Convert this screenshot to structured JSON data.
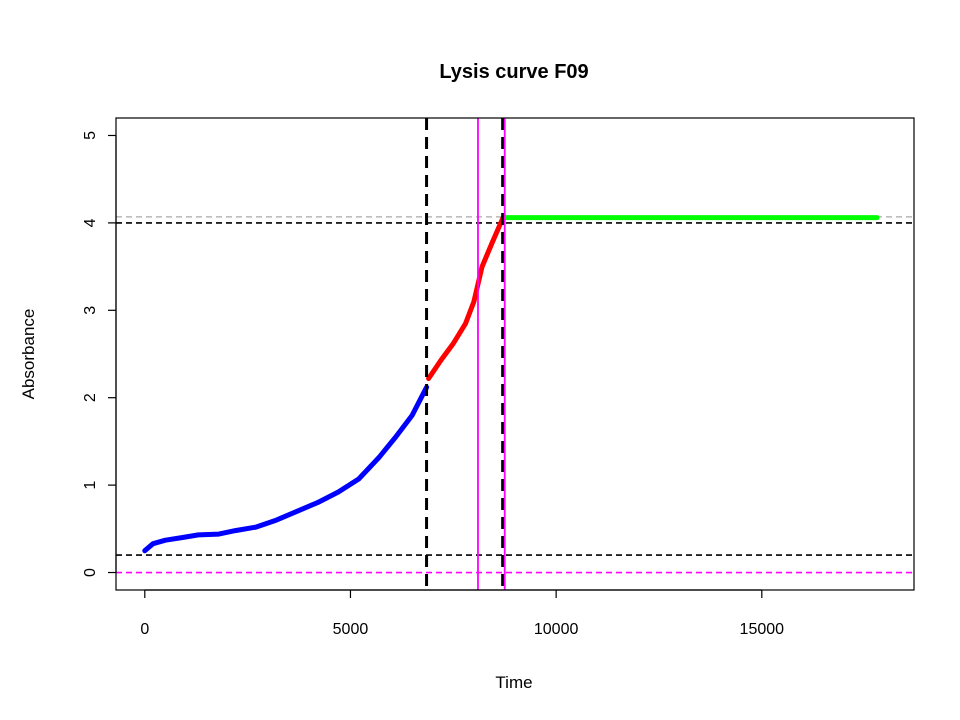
{
  "chart_data": {
    "type": "line",
    "title": "Lysis curve F09",
    "xlabel": "Time",
    "ylabel": "Absorbance",
    "xlim": [
      -700,
      18700
    ],
    "ylim": [
      -0.2,
      5.2
    ],
    "x_ticks": [
      0,
      5000,
      10000,
      15000
    ],
    "x_tick_labels": [
      "0",
      "5000",
      "10000",
      "15000"
    ],
    "y_ticks": [
      0,
      1,
      2,
      3,
      4,
      5
    ],
    "y_tick_labels": [
      "0",
      "1",
      "2",
      "3",
      "4",
      "5"
    ],
    "grid": false,
    "legend": "none",
    "series": [
      {
        "color": "#0000ff",
        "x": [
          0,
          200,
          500,
          900,
          1300,
          1800,
          2200,
          2700,
          3200,
          3700,
          4200,
          4700,
          5200,
          5700,
          6100,
          6500,
          6850
        ],
        "y": [
          0.25,
          0.33,
          0.37,
          0.4,
          0.43,
          0.44,
          0.48,
          0.52,
          0.6,
          0.7,
          0.8,
          0.92,
          1.07,
          1.32,
          1.55,
          1.8,
          2.12
        ]
      },
      {
        "color": "#ff0000",
        "x": [
          6900,
          7200,
          7500,
          7800,
          8000,
          8200,
          8450,
          8700
        ],
        "y": [
          2.22,
          2.43,
          2.62,
          2.85,
          3.1,
          3.5,
          3.78,
          4.05
        ]
      },
      {
        "color": "#00ff00",
        "x": [
          8750,
          17800
        ],
        "y": [
          4.06,
          4.06
        ]
      }
    ],
    "hlines": [
      {
        "y": 4.07,
        "color": "#bebebe",
        "dash": "dashed"
      },
      {
        "y": 4.0,
        "color": "#000000",
        "dash": "dashed"
      },
      {
        "y": 0.2,
        "color": "#000000",
        "dash": "dashed"
      },
      {
        "y": 0.0,
        "color": "#ff00ff",
        "dash": "dashed"
      }
    ],
    "vlines": [
      {
        "x": 6850,
        "color": "#000000",
        "dash": "dashed"
      },
      {
        "x": 8700,
        "color": "#000000",
        "dash": "dashed"
      },
      {
        "x": 8100,
        "color": "#ff00ff",
        "dash": "solid"
      },
      {
        "x": 8750,
        "color": "#ff00ff",
        "dash": "solid"
      }
    ]
  }
}
